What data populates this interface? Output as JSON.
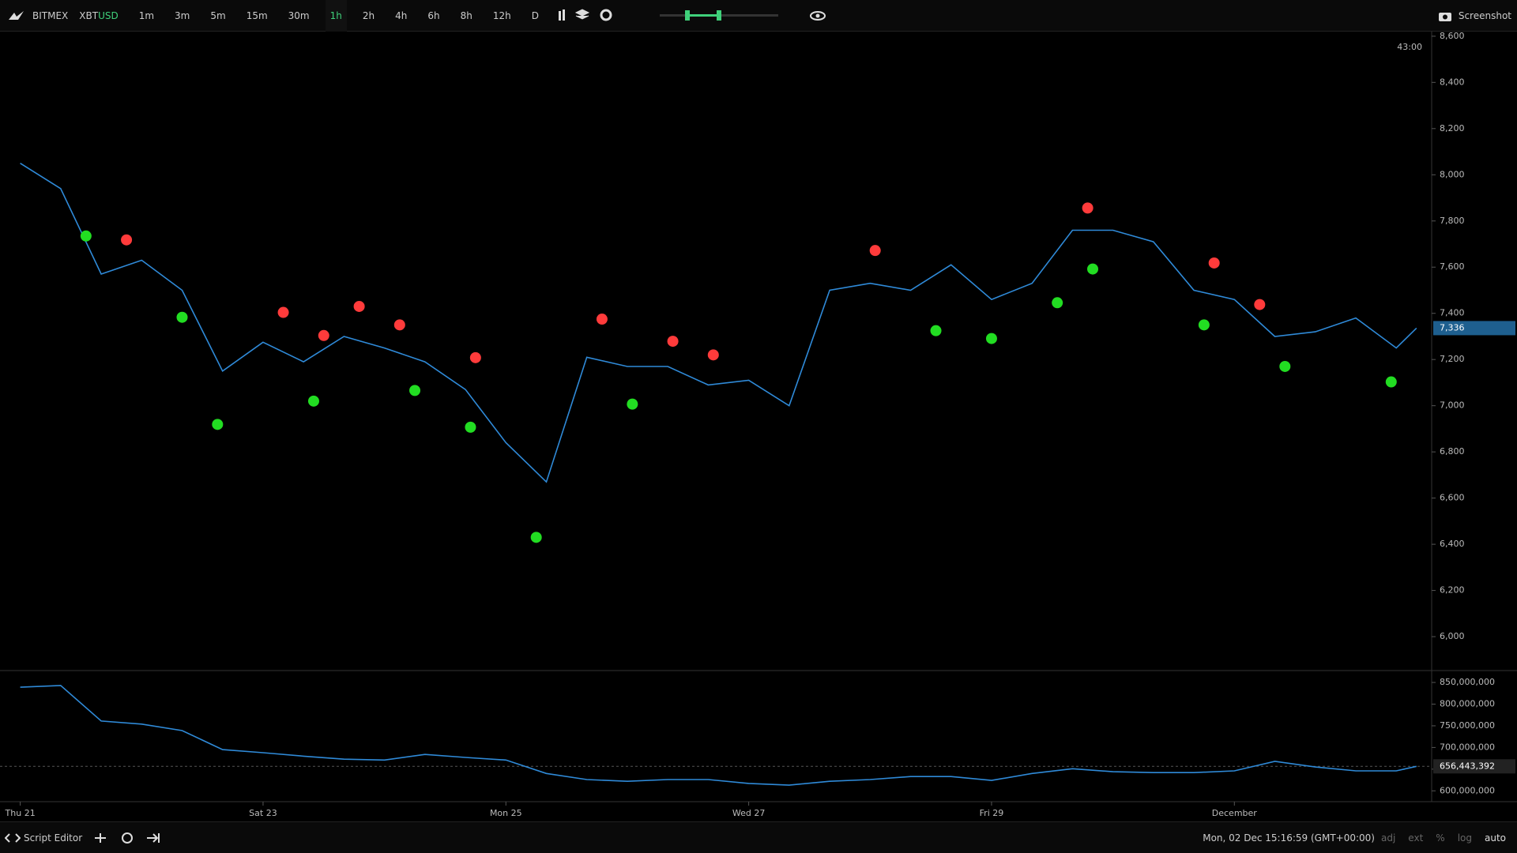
{
  "toolbar": {
    "exchange": "BITMEX",
    "symbol_base": "XBT",
    "symbol_quote": "USD",
    "timeframes": [
      "1m",
      "3m",
      "5m",
      "15m",
      "30m",
      "1h",
      "2h",
      "4h",
      "6h",
      "8h",
      "12h",
      "D"
    ],
    "active_timeframe": 5,
    "screenshot": "Screenshot"
  },
  "chart_data": [
    {
      "type": "line",
      "countdown": "43:00",
      "xlim": [
        -4,
        279
      ],
      "xticks": [
        {
          "value": 0,
          "label": "Thu 21"
        },
        {
          "value": 48,
          "label": "Sat 23"
        },
        {
          "value": 96,
          "label": "Mon 25"
        },
        {
          "value": 144,
          "label": "Wed 27"
        },
        {
          "value": 192,
          "label": "Fri 29"
        },
        {
          "value": 240,
          "label": "December"
        }
      ],
      "ylim": [
        5860,
        8620
      ],
      "yticks": [
        {
          "value": 6000,
          "label": "6,000"
        },
        {
          "value": 6200,
          "label": "6,200"
        },
        {
          "value": 6400,
          "label": "6,400"
        },
        {
          "value": 6600,
          "label": "6,600"
        },
        {
          "value": 6800,
          "label": "6,800"
        },
        {
          "value": 7000,
          "label": "7,000"
        },
        {
          "value": 7200,
          "label": "7,200"
        },
        {
          "value": 7400,
          "label": "7,400"
        },
        {
          "value": 7600,
          "label": "7,600"
        },
        {
          "value": 7800,
          "label": "7,800"
        },
        {
          "value": 8000,
          "label": "8,000"
        },
        {
          "value": 8200,
          "label": "8,200"
        },
        {
          "value": 8400,
          "label": "8,400"
        },
        {
          "value": 8600,
          "label": "8,600"
        }
      ],
      "last": {
        "value": 7336,
        "label": "7,336"
      },
      "series": [
        {
          "color": "#2f8ad8",
          "x": [
            0,
            8,
            16,
            24,
            32,
            40,
            48,
            56,
            64,
            72,
            80,
            88,
            96,
            104,
            112,
            120,
            128,
            136,
            144,
            152,
            160,
            168,
            176,
            184,
            192,
            200,
            208,
            216,
            224,
            232,
            240,
            248,
            256,
            264,
            272,
            276
          ],
          "values": [
            8050,
            7940,
            7570,
            7630,
            7500,
            7150,
            7275,
            7190,
            7300,
            7250,
            7190,
            7070,
            6840,
            6670,
            7210,
            7170,
            7170,
            7090,
            7110,
            7000,
            7500,
            7530,
            7500,
            7610,
            7460,
            7530,
            7760,
            7760,
            7710,
            7500,
            7460,
            7300,
            7320,
            7380,
            7250,
            7336
          ]
        }
      ],
      "markers": [
        {
          "color": "#ff3b3b",
          "x": [
            21,
            52,
            60,
            67,
            75,
            90,
            115,
            129,
            137,
            169,
            211,
            236,
            245
          ],
          "values": [
            7718,
            7404,
            7304,
            7430,
            7350,
            7208,
            7375,
            7279,
            7220,
            7672,
            7856,
            7618,
            7438
          ]
        },
        {
          "color": "#22dd22",
          "x": [
            13,
            32,
            39,
            58,
            78,
            89,
            102,
            121,
            181,
            192,
            205,
            212,
            234,
            250,
            271
          ],
          "values": [
            7735,
            7383,
            6919,
            7020,
            7066,
            6907,
            6430,
            7007,
            7325,
            7291,
            7446,
            7592,
            7350,
            7170,
            7103
          ]
        }
      ]
    },
    {
      "type": "line",
      "xlim": [
        -4,
        279
      ],
      "ylim": [
        575000000,
        872000000
      ],
      "yticks": [
        {
          "value": 600000000,
          "label": "600,000,000"
        },
        {
          "value": 650000000,
          "label": "650,000,000"
        },
        {
          "value": 700000000,
          "label": "700,000,000"
        },
        {
          "value": 750000000,
          "label": "750,000,000"
        },
        {
          "value": 800000000,
          "label": "800,000,000"
        },
        {
          "value": 850000000,
          "label": "850,000,000"
        }
      ],
      "last": {
        "value": 656443392,
        "label": "656,443,392"
      },
      "series": [
        {
          "color": "#2f8ad8",
          "x": [
            0,
            8,
            16,
            24,
            32,
            40,
            48,
            56,
            64,
            72,
            80,
            88,
            96,
            104,
            112,
            120,
            128,
            136,
            144,
            152,
            160,
            168,
            176,
            184,
            192,
            200,
            208,
            216,
            224,
            232,
            240,
            248,
            256,
            264,
            272,
            276
          ],
          "values": [
            839000000,
            843000000,
            761000000,
            754000000,
            739000000,
            695000000,
            688000000,
            680000000,
            673000000,
            671000000,
            684000000,
            677000000,
            671000000,
            640000000,
            626000000,
            622000000,
            626000000,
            626000000,
            617000000,
            613000000,
            622000000,
            626000000,
            633000000,
            633000000,
            624000000,
            640000000,
            651000000,
            644000000,
            642000000,
            642000000,
            646000000,
            668000000,
            655000000,
            646000000,
            646000000,
            656443392
          ]
        }
      ]
    }
  ],
  "footer": {
    "script_editor": "Script Editor",
    "clock": "Mon, 02 Dec 15:16:59 (GMT+00:00)",
    "modes": [
      "adj",
      "ext",
      "%",
      "log",
      "auto"
    ]
  }
}
